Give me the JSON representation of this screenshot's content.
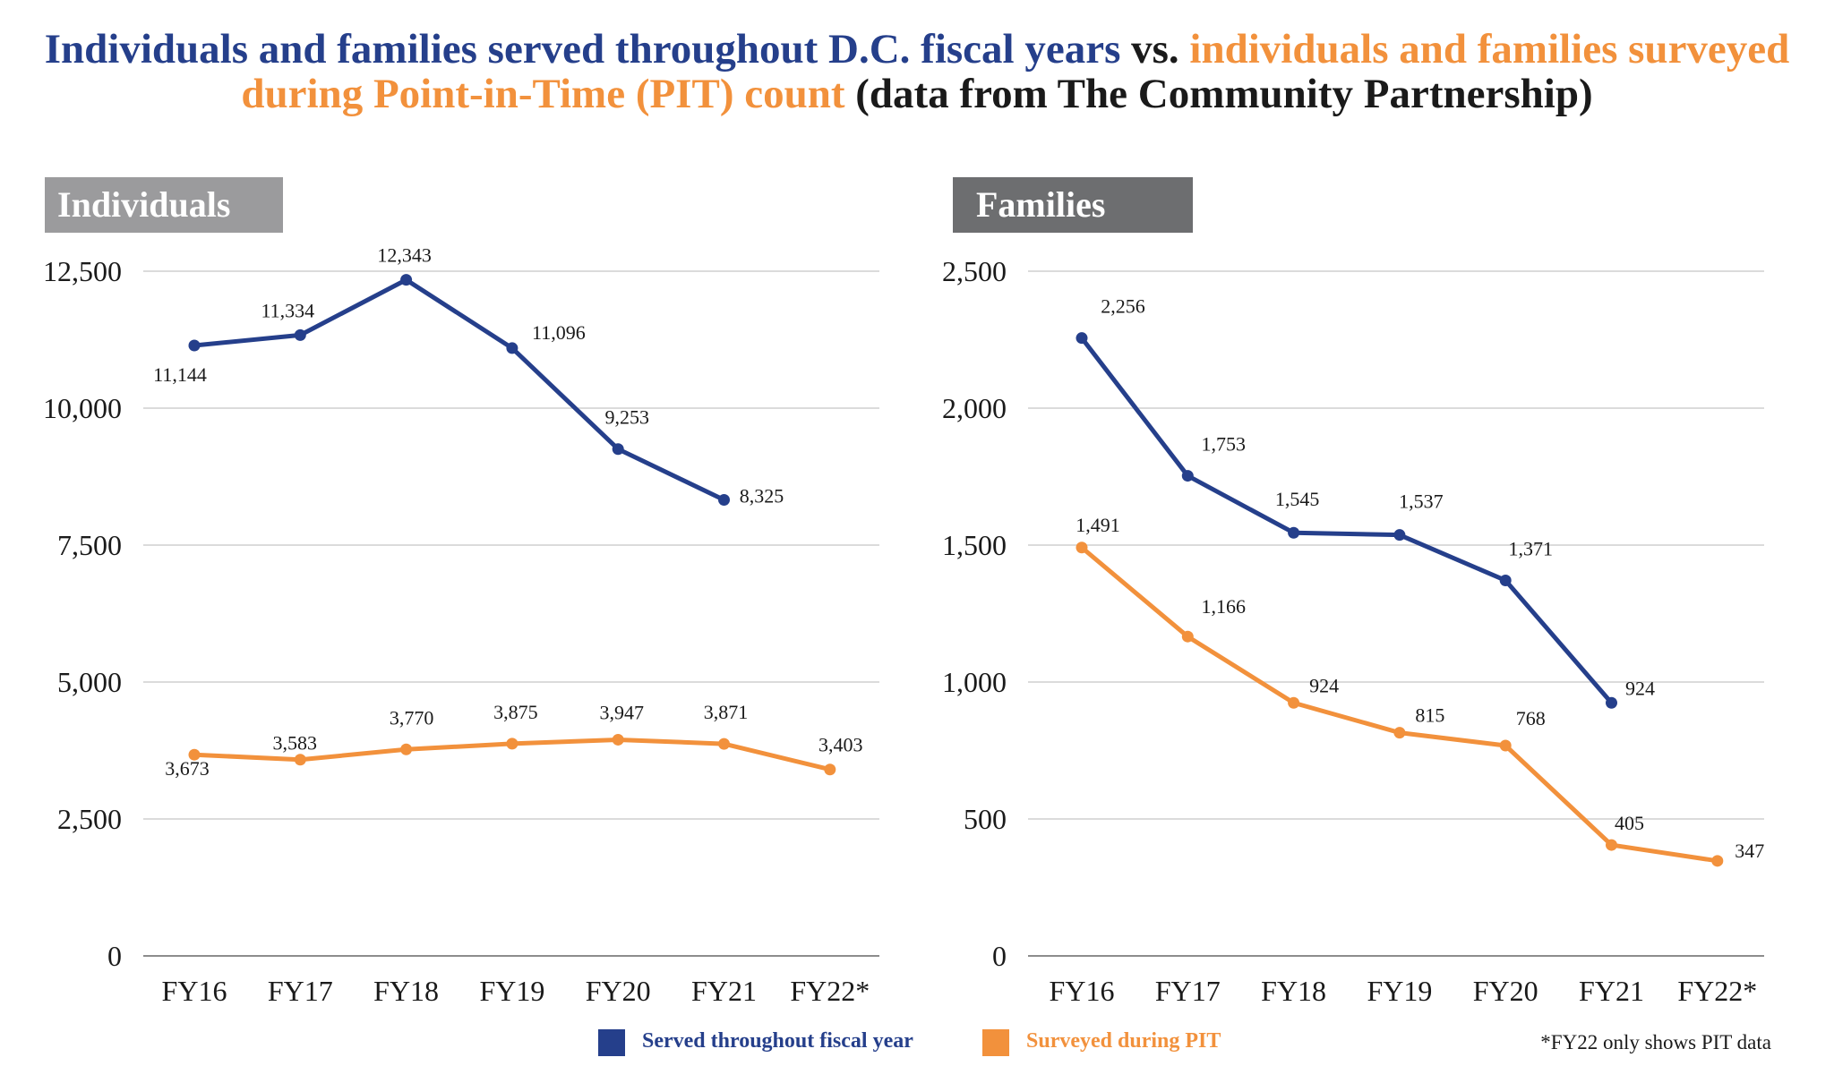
{
  "title": {
    "part_blue": "Individuals and families served throughout D.C. fiscal years",
    "part_vs": " vs. ",
    "part_orange": "individuals and families surveyed during Point-in-Time (PIT) count",
    "part_black": " (data from The Community Partnership)"
  },
  "colors": {
    "served": "#253f8b",
    "surveyed": "#f2913c",
    "grid": "#cfcfcf"
  },
  "chart_data": [
    {
      "type": "line",
      "title": "Individuals",
      "categories": [
        "FY16",
        "FY17",
        "FY18",
        "FY19",
        "FY20",
        "FY21",
        "FY22*"
      ],
      "ylim": [
        0,
        12500
      ],
      "yticks": [
        0,
        2500,
        5000,
        7500,
        10000,
        12500
      ],
      "ytick_labels": [
        "0",
        "2,500",
        "5,000",
        "7,500",
        "10,000",
        "12,500"
      ],
      "grid": true,
      "series": [
        {
          "name": "Served throughout fiscal year",
          "color": "#253f8b",
          "values": [
            11144,
            11334,
            12343,
            11096,
            9253,
            8325,
            null
          ],
          "labels": [
            "11,144",
            "11,334",
            "12,343",
            "11,096",
            "9,253",
            "8,325",
            null
          ]
        },
        {
          "name": "Surveyed during PIT",
          "color": "#f2913c",
          "values": [
            3673,
            3583,
            3770,
            3875,
            3947,
            3871,
            3403
          ],
          "labels": [
            "3,673",
            "3,583",
            "3,770",
            "3,875",
            "3,947",
            "3,871",
            "3,403"
          ]
        }
      ]
    },
    {
      "type": "line",
      "title": "Families",
      "categories": [
        "FY16",
        "FY17",
        "FY18",
        "FY19",
        "FY20",
        "FY21",
        "FY22*"
      ],
      "ylim": [
        0,
        2500
      ],
      "yticks": [
        0,
        500,
        1000,
        1500,
        2000,
        2500
      ],
      "ytick_labels": [
        "0",
        "500",
        "1,000",
        "1,500",
        "2,000",
        "2,500"
      ],
      "grid": true,
      "series": [
        {
          "name": "Served throughout fiscal year",
          "color": "#253f8b",
          "values": [
            2256,
            1753,
            1545,
            1537,
            1371,
            924,
            null
          ],
          "labels": [
            "2,256",
            "1,753",
            "1,545",
            "1,537",
            "1,371",
            "924",
            null
          ]
        },
        {
          "name": "Surveyed during PIT",
          "color": "#f2913c",
          "values": [
            1491,
            1166,
            924,
            815,
            768,
            405,
            347
          ],
          "labels": [
            "1,491",
            "1,166",
            "924",
            "815",
            "768",
            "405",
            "347"
          ]
        }
      ]
    }
  ],
  "legend": {
    "served_label": "Served throughout fiscal year",
    "surveyed_label": "Surveyed during PIT",
    "placement": "bottom"
  },
  "footnote": "*FY22 only shows PIT data"
}
